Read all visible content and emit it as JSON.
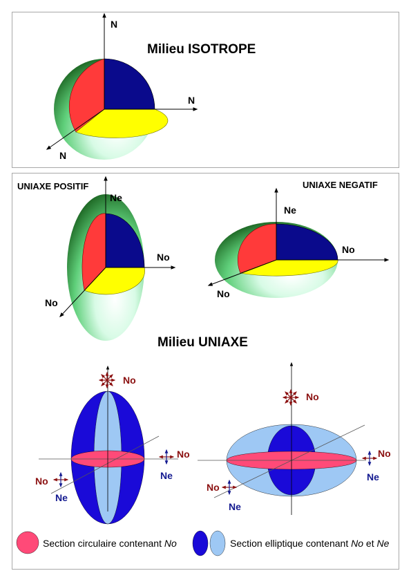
{
  "isotrope": {
    "title": "Milieu ISOTROPE",
    "axis_labels": [
      "N",
      "N",
      "N"
    ]
  },
  "uniaxe": {
    "title": "Milieu UNIAXE",
    "positif_label": "UNIAXE POSITIF",
    "negatif_label": "UNIAXE NEGATIF",
    "positif_axes": {
      "vertical": "Ne",
      "horizontal": "No",
      "oblique": "No"
    },
    "negatif_axes": {
      "vertical": "Ne",
      "horizontal": "No",
      "oblique": "No"
    },
    "left_sections": {
      "top": "No",
      "right_no": "No",
      "right_ne": "Ne",
      "left_no": "No",
      "left_ne": "Ne"
    },
    "right_sections": {
      "top": "No",
      "right_no": "No",
      "right_ne": "Ne",
      "left_no": "No",
      "left_ne": "Ne"
    }
  },
  "legend": {
    "circular_text": "Section circulaire contenant ",
    "circular_em": "No",
    "elliptic_text": "Section elliptique contenant ",
    "elliptic_em1": "No",
    "elliptic_mid": " et ",
    "elliptic_em2": "Ne"
  },
  "colors": {
    "red_sector": "#ff3a3a",
    "blue_sector": "#0a0a8c",
    "yellow_sector": "#ffff00",
    "green_shell": "#3a9a3a",
    "pink_section": "#ff4a78",
    "dark_blue_section": "#1a0ad8",
    "light_blue_section": "#9ec8f4",
    "label_red": "#8b1010",
    "label_blue": "#141a90"
  }
}
